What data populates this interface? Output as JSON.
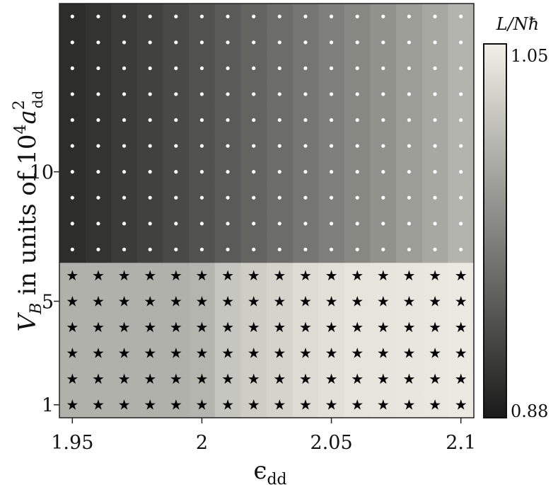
{
  "chart_data": {
    "type": "heatmap",
    "title": "",
    "xlabel": "ϵ",
    "xlabel_subscript": "dd",
    "ylabel": "V",
    "ylabel_sub": "B",
    "ylabel_mid": " in units of 10",
    "ylabel_sup": "4",
    "ylabel_tail": "a",
    "ylabel_tail_sup": "2",
    "ylabel_tail_sub": "dd",
    "x_values": [
      1.95,
      1.96,
      1.97,
      1.98,
      1.99,
      2.0,
      2.01,
      2.02,
      2.03,
      2.04,
      2.05,
      2.06,
      2.07,
      2.08,
      2.09,
      2.1
    ],
    "y_values": [
      1,
      2,
      3,
      4,
      5,
      6,
      7,
      8,
      9,
      10,
      11,
      12,
      13,
      14,
      15,
      16
    ],
    "xlim": [
      1.945,
      2.105
    ],
    "ylim": [
      0.5,
      16.5
    ],
    "x_ticks": [
      {
        "value": 1.95,
        "label": "1.95"
      },
      {
        "value": 2.0,
        "label": "2"
      },
      {
        "value": 2.05,
        "label": "2.05"
      },
      {
        "value": 2.1,
        "label": "2.1"
      }
    ],
    "y_ticks": [
      {
        "value": 1,
        "label": "1"
      },
      {
        "value": 5,
        "label": "5"
      },
      {
        "value": 10,
        "label": "10"
      }
    ],
    "colorbar": {
      "label": "L/Nħ",
      "min": 0.88,
      "max": 1.05,
      "min_label": "0.88",
      "max_label": "1.05",
      "colors": [
        "#1a1a1a",
        "#f0f0e8"
      ]
    },
    "marker_regions": [
      {
        "y_from": 1,
        "y_to": 6,
        "marker": "star",
        "color": "#000000"
      },
      {
        "y_from": 7,
        "y_to": 16,
        "marker": "dot",
        "color": "#ffffff"
      }
    ],
    "col_values_lower": [
      1.0,
      1.0,
      1.0,
      1.0,
      1.0,
      1.003,
      1.017,
      1.023,
      1.028,
      1.034,
      1.038,
      1.041,
      1.042,
      1.043,
      1.044,
      1.045
    ],
    "col_values_upper": [
      0.895,
      0.9,
      0.906,
      0.911,
      0.917,
      0.924,
      0.931,
      0.938,
      0.945,
      0.952,
      0.96,
      0.967,
      0.975,
      0.984,
      0.993,
      1.002
    ]
  }
}
